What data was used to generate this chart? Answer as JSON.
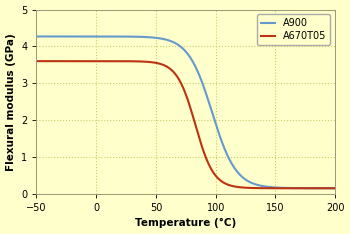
{
  "title": "",
  "xlabel": "Temperature (°C)",
  "ylabel": "Flexural modulus (GPa)",
  "xlim": [
    -50,
    200
  ],
  "ylim": [
    0,
    5
  ],
  "xticks": [
    -50,
    0,
    50,
    100,
    150,
    200
  ],
  "yticks": [
    0,
    1,
    2,
    3,
    4,
    5
  ],
  "background_color": "#ffffcc",
  "grid_color": "#cccc66",
  "series": [
    {
      "label": "A900",
      "color": "#6699cc",
      "y_high": 4.27,
      "y_low": 0.15,
      "inflection": 97,
      "steepness": 0.1
    },
    {
      "label": "A670T05",
      "color": "#bb3311",
      "y_high": 3.6,
      "y_low": 0.15,
      "inflection": 83,
      "steepness": 0.13
    }
  ],
  "legend_loc": "upper right",
  "legend_fontsize": 7,
  "axis_label_fontsize": 7.5,
  "tick_fontsize": 7,
  "linewidth": 1.5
}
